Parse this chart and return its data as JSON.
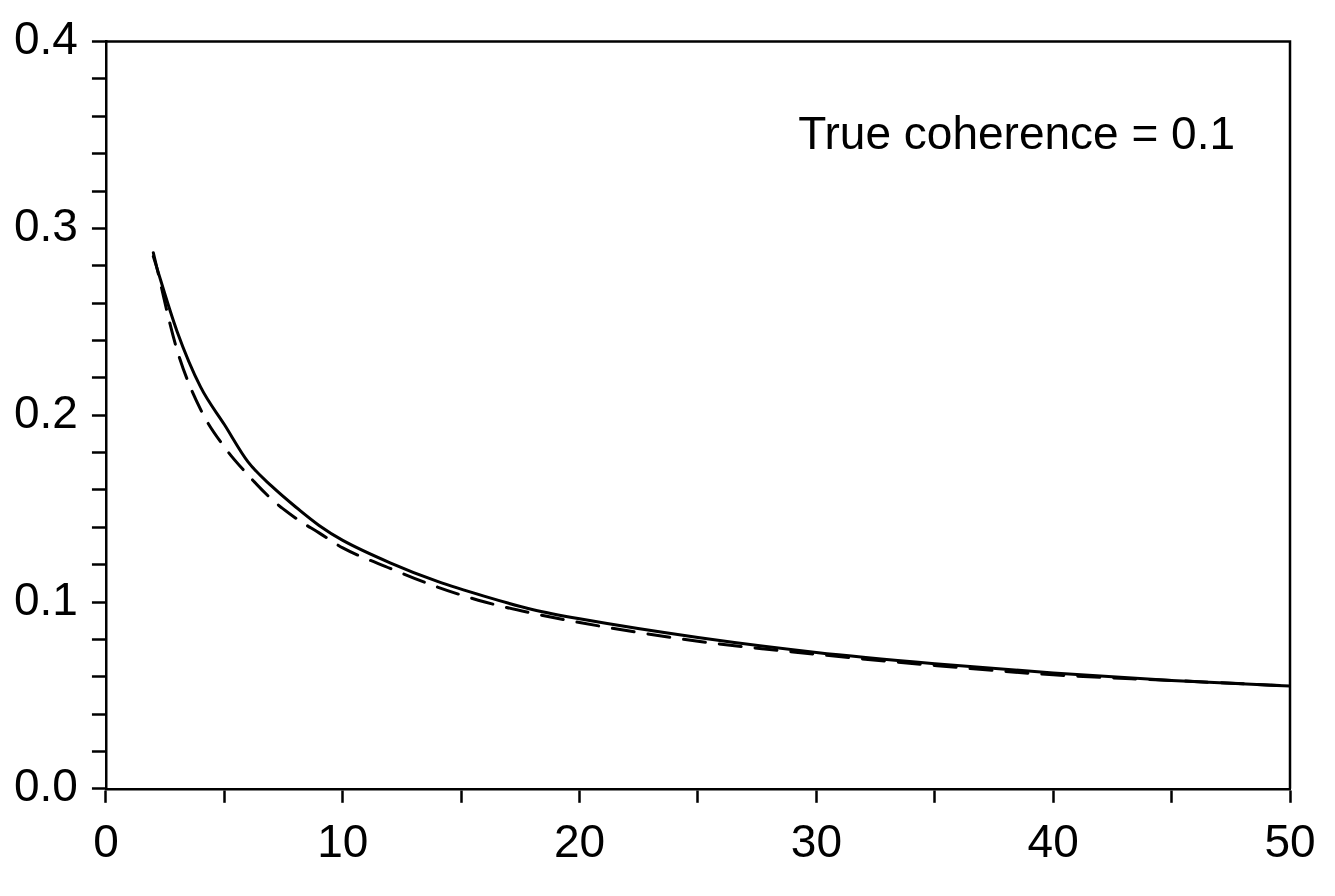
{
  "chart_data": {
    "type": "line",
    "annotations": [
      "True coherence = 0.1"
    ],
    "grid": false,
    "legend": false,
    "marker": "none",
    "xlim": [
      0,
      50
    ],
    "xticks": [
      0,
      {
        "value": 5,
        "label": null
      },
      10,
      {
        "value": 15,
        "label": null
      },
      20,
      {
        "value": 25,
        "label": null
      },
      30,
      {
        "value": 35,
        "label": null
      },
      40,
      {
        "value": 45,
        "label": null
      },
      50
    ],
    "ylim": [
      0,
      0.4
    ],
    "yticks": [
      {
        "value": 0,
        "label": "0.0"
      },
      {
        "value": 0.02,
        "label": null
      },
      {
        "value": 0.04,
        "label": null
      },
      {
        "value": 0.06,
        "label": null
      },
      {
        "value": 0.08,
        "label": null
      },
      0.1,
      {
        "value": 0.12,
        "label": null
      },
      {
        "value": 0.14,
        "label": null
      },
      {
        "value": 0.16,
        "label": null
      },
      {
        "value": 0.18,
        "label": null
      },
      0.2,
      {
        "value": 0.22,
        "label": null
      },
      {
        "value": 0.24,
        "label": null
      },
      {
        "value": 0.26,
        "label": null
      },
      {
        "value": 0.28,
        "label": null
      },
      0.3,
      {
        "value": 0.32,
        "label": null
      },
      {
        "value": 0.34,
        "label": null
      },
      {
        "value": 0.36,
        "label": null
      },
      {
        "value": 0.38,
        "label": null
      },
      0.4
    ],
    "series": [
      {
        "color": "#000000",
        "line_style": "solid",
        "x": [
          2,
          3,
          4,
          5,
          6,
          7,
          8,
          9,
          10,
          12,
          14,
          16,
          18,
          20,
          25,
          30,
          35,
          40,
          45,
          50
        ],
        "values": [
          0.285,
          0.245,
          0.215,
          0.195,
          0.175,
          0.162,
          0.151,
          0.141,
          0.133,
          0.121,
          0.111,
          0.103,
          0.096,
          0.091,
          0.081,
          0.073,
          0.067,
          0.062,
          0.058,
          0.055
        ]
      },
      {
        "color": "#000000",
        "line_style": "dashed",
        "x": [
          2,
          3,
          4,
          5,
          6,
          7,
          8,
          9,
          10,
          12,
          14,
          16,
          18,
          20,
          25,
          30,
          35,
          40,
          45,
          50
        ],
        "values": [
          0.287,
          0.235,
          0.203,
          0.183,
          0.168,
          0.155,
          0.145,
          0.137,
          0.129,
          0.118,
          0.108,
          0.1,
          0.094,
          0.089,
          0.079,
          0.072,
          0.066,
          0.061,
          0.058,
          0.055
        ]
      }
    ]
  }
}
